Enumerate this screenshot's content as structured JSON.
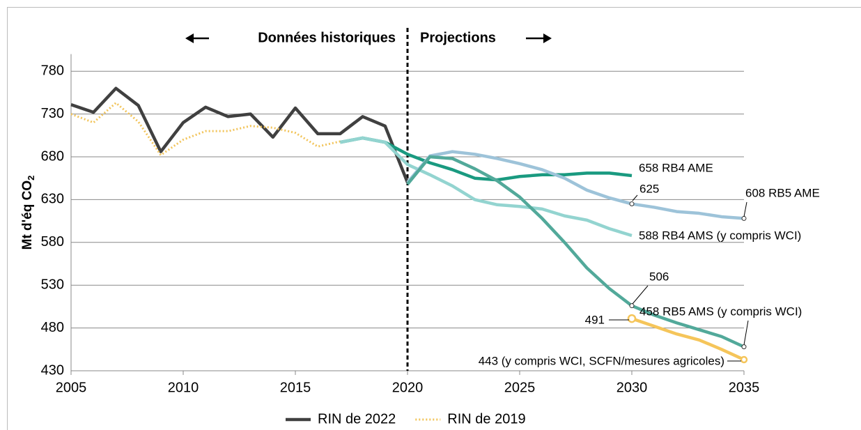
{
  "chart_data": {
    "type": "line",
    "header_left": "Données historiques",
    "header_right": "Projections",
    "y_label": "Mt d'éq CO",
    "y_label_sub": "2",
    "x": [
      2005,
      2006,
      2007,
      2008,
      2009,
      2010,
      2011,
      2012,
      2013,
      2014,
      2015,
      2016,
      2017,
      2018,
      2019,
      2020,
      2021,
      2022,
      2023,
      2024,
      2025,
      2026,
      2027,
      2028,
      2029,
      2030,
      2031,
      2032,
      2033,
      2034,
      2035
    ],
    "xlim": [
      2005,
      2035
    ],
    "xticks": [
      2005,
      2010,
      2015,
      2020,
      2025,
      2030,
      2035
    ],
    "ylim": [
      430,
      800
    ],
    "yticks": [
      430,
      480,
      530,
      580,
      630,
      680,
      730,
      780
    ],
    "grid": true,
    "legend": "bottom",
    "series": [
      {
        "name": "RIN de 2022",
        "color": "#404040",
        "style": "solid",
        "values": [
          741,
          732,
          760,
          740,
          686,
          720,
          738,
          727,
          730,
          703,
          737,
          707,
          707,
          727,
          716,
          650,
          null,
          null,
          null,
          null,
          null,
          null,
          null,
          null,
          null,
          null,
          null,
          null,
          null,
          null,
          null
        ]
      },
      {
        "name": "RIN de 2019",
        "color": "#f2c45a",
        "style": "dotted",
        "values": [
          730,
          720,
          743,
          721,
          682,
          700,
          710,
          710,
          716,
          714,
          708,
          692,
          698,
          null,
          null,
          null,
          null,
          null,
          null,
          null,
          null,
          null,
          null,
          null,
          null,
          null,
          null,
          null,
          null,
          null,
          null
        ]
      },
      {
        "color": "#1a9a80",
        "style": "solid",
        "values": [
          null,
          null,
          null,
          null,
          null,
          null,
          null,
          null,
          null,
          null,
          null,
          null,
          697,
          702,
          697,
          683,
          673,
          665,
          655,
          653,
          657,
          659,
          659,
          661,
          661,
          658,
          null,
          null,
          null,
          null,
          null
        ]
      },
      {
        "color": "#93d4d0",
        "style": "solid",
        "values": [
          null,
          null,
          null,
          null,
          null,
          null,
          null,
          null,
          null,
          null,
          null,
          null,
          697,
          702,
          697,
          671,
          659,
          646,
          630,
          624,
          622,
          619,
          611,
          606,
          596,
          588,
          null,
          null,
          null,
          null,
          null
        ]
      },
      {
        "color": "#9dc3d9",
        "style": "solid",
        "values": [
          null,
          null,
          null,
          null,
          null,
          null,
          null,
          null,
          null,
          null,
          null,
          null,
          null,
          null,
          null,
          650,
          681,
          686,
          683,
          678,
          672,
          665,
          655,
          641,
          632,
          625,
          621,
          616,
          614,
          610,
          608
        ]
      },
      {
        "color": "#52a99a",
        "style": "solid",
        "values": [
          null,
          null,
          null,
          null,
          null,
          null,
          null,
          null,
          null,
          null,
          null,
          null,
          null,
          null,
          null,
          648,
          680,
          678,
          666,
          652,
          633,
          608,
          580,
          550,
          526,
          506,
          495,
          486,
          478,
          470,
          458
        ]
      },
      {
        "color": "#f5c55a",
        "style": "solid",
        "values": [
          null,
          null,
          null,
          null,
          null,
          null,
          null,
          null,
          null,
          null,
          null,
          null,
          null,
          null,
          null,
          null,
          null,
          null,
          null,
          null,
          null,
          null,
          null,
          null,
          null,
          491,
          482,
          473,
          466,
          455,
          443
        ]
      }
    ],
    "annotations": [
      "658 RB4 AME",
      "625",
      "608 RB5 AME",
      "588 RB4 AMS (y compris WCI)",
      "506",
      "458 RB5 AMS (y compris WCI)",
      "491",
      "443 (y compris WCI, SCFN/mesures agricoles)"
    ]
  }
}
